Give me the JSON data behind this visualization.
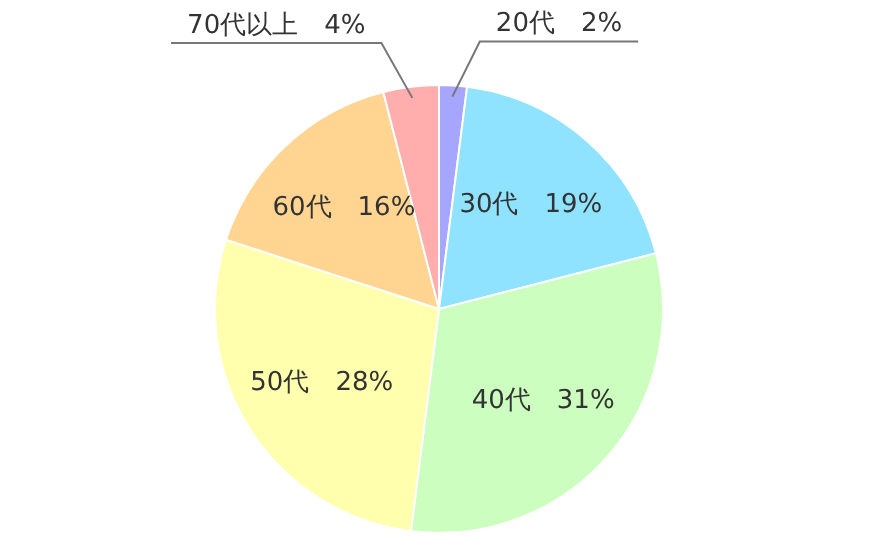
{
  "chart_data": {
    "type": "pie",
    "categories": [
      "20代",
      "30代",
      "40代",
      "50代",
      "60代",
      "70代以上"
    ],
    "values": [
      2,
      19,
      31,
      28,
      16,
      4
    ],
    "value_labels": [
      "2%",
      "19%",
      "31%",
      "28%",
      "16%",
      "4%"
    ],
    "colors": [
      "#a6a6ff",
      "#8fe3ff",
      "#ccffbf",
      "#ffffad",
      "#ffd591",
      "#ffadad"
    ],
    "legend": false
  }
}
